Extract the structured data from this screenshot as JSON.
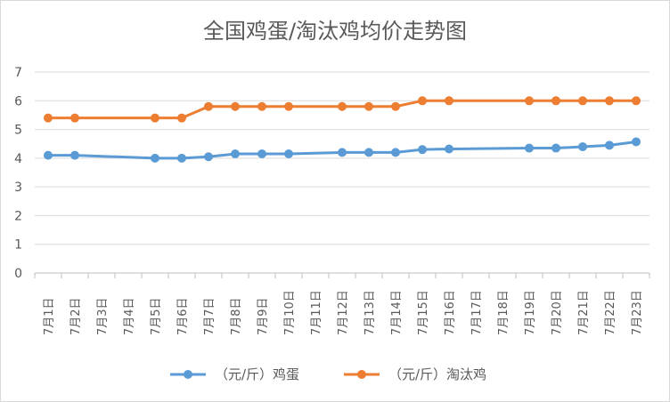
{
  "chart_data": {
    "type": "line",
    "title": "全国鸡蛋/淘汰鸡均价走势图",
    "categories": [
      "7月1日",
      "7月2日",
      "7月3日",
      "7月4日",
      "7月5日",
      "7月6日",
      "7月7日",
      "7月8日",
      "7月9日",
      "7月10日",
      "7月11日",
      "7月12日",
      "7月13日",
      "7月14日",
      "7月15日",
      "7月16日",
      "7月17日",
      "7月18日",
      "7月19日",
      "7月20日",
      "7月21日",
      "7月22日",
      "7月23日"
    ],
    "series": [
      {
        "name": "（元/斤）鸡蛋",
        "color": "#5b9bd5",
        "values": [
          4.1,
          4.1,
          null,
          null,
          4.0,
          4.0,
          4.05,
          4.15,
          4.15,
          4.15,
          null,
          4.2,
          4.2,
          4.2,
          4.3,
          4.32,
          null,
          null,
          4.35,
          4.35,
          4.4,
          4.45,
          4.57
        ]
      },
      {
        "name": "（元/斤）淘汰鸡",
        "color": "#ed7d31",
        "values": [
          5.4,
          5.4,
          null,
          null,
          5.4,
          5.4,
          5.8,
          5.8,
          5.8,
          5.8,
          null,
          5.8,
          5.8,
          5.8,
          6.0,
          6.0,
          null,
          null,
          6.0,
          6.0,
          6.0,
          6.0,
          6.0
        ]
      }
    ],
    "ylim": [
      0,
      7
    ],
    "yticks": [
      0,
      1,
      2,
      3,
      4,
      5,
      6,
      7
    ],
    "grid": true,
    "legend": "bottom"
  }
}
